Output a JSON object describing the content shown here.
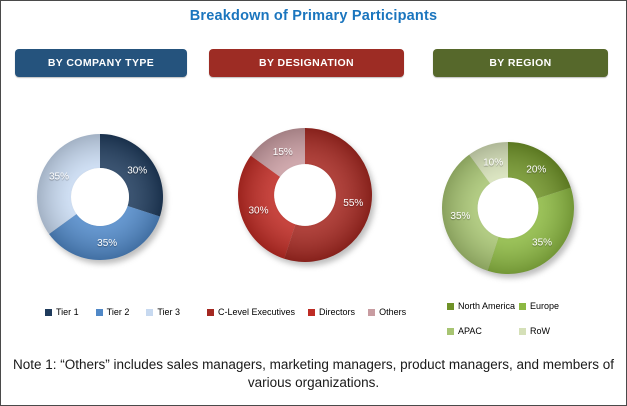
{
  "title": "Breakdown of Primary Participants",
  "colors": {
    "title": "#1A75BE",
    "button_text": "#FFFFFF"
  },
  "sections": [
    {
      "label": "BY COMPANY TYPE",
      "color": "#25537D"
    },
    {
      "label": "BY DESIGNATION",
      "color": "#9D2C24"
    },
    {
      "label": "BY REGION",
      "color": "#56682B"
    }
  ],
  "note": "Note 1: “Others” includes sales managers, marketing managers, product managers, and members of various organizations.",
  "chart_data": [
    {
      "type": "pie",
      "subtype": "donut",
      "title": "BY COMPANY TYPE",
      "categories": [
        "Tier 1",
        "Tier 2",
        "Tier 3"
      ],
      "values": [
        30,
        35,
        35
      ],
      "labels": [
        "30%",
        "35%",
        "35%"
      ],
      "colors": [
        "#1F3B5C",
        "#5088C7",
        "#C7D9F0"
      ],
      "start_angle_deg": 0,
      "direction": "clockwise",
      "legend_position": "bottom"
    },
    {
      "type": "pie",
      "subtype": "donut",
      "title": "BY DESIGNATION",
      "categories": [
        "C-Level Executives",
        "Directors",
        "Others"
      ],
      "values": [
        55,
        30,
        15
      ],
      "labels": [
        "55%",
        "30%",
        "15%"
      ],
      "colors": [
        "#A42821",
        "#BE2B24",
        "#C89CA1"
      ],
      "start_angle_deg": 0,
      "direction": "clockwise",
      "legend_position": "bottom"
    },
    {
      "type": "pie",
      "subtype": "donut",
      "title": "BY REGION",
      "categories": [
        "North America",
        "Europe",
        "APAC",
        "RoW"
      ],
      "values": [
        20,
        35,
        35,
        10
      ],
      "labels": [
        "20%",
        "35%",
        "35%",
        "10%"
      ],
      "colors": [
        "#6F9228",
        "#8CB842",
        "#A7C472",
        "#D5E0B8"
      ],
      "start_angle_deg": 0,
      "direction": "clockwise",
      "legend_position": "bottom"
    }
  ]
}
